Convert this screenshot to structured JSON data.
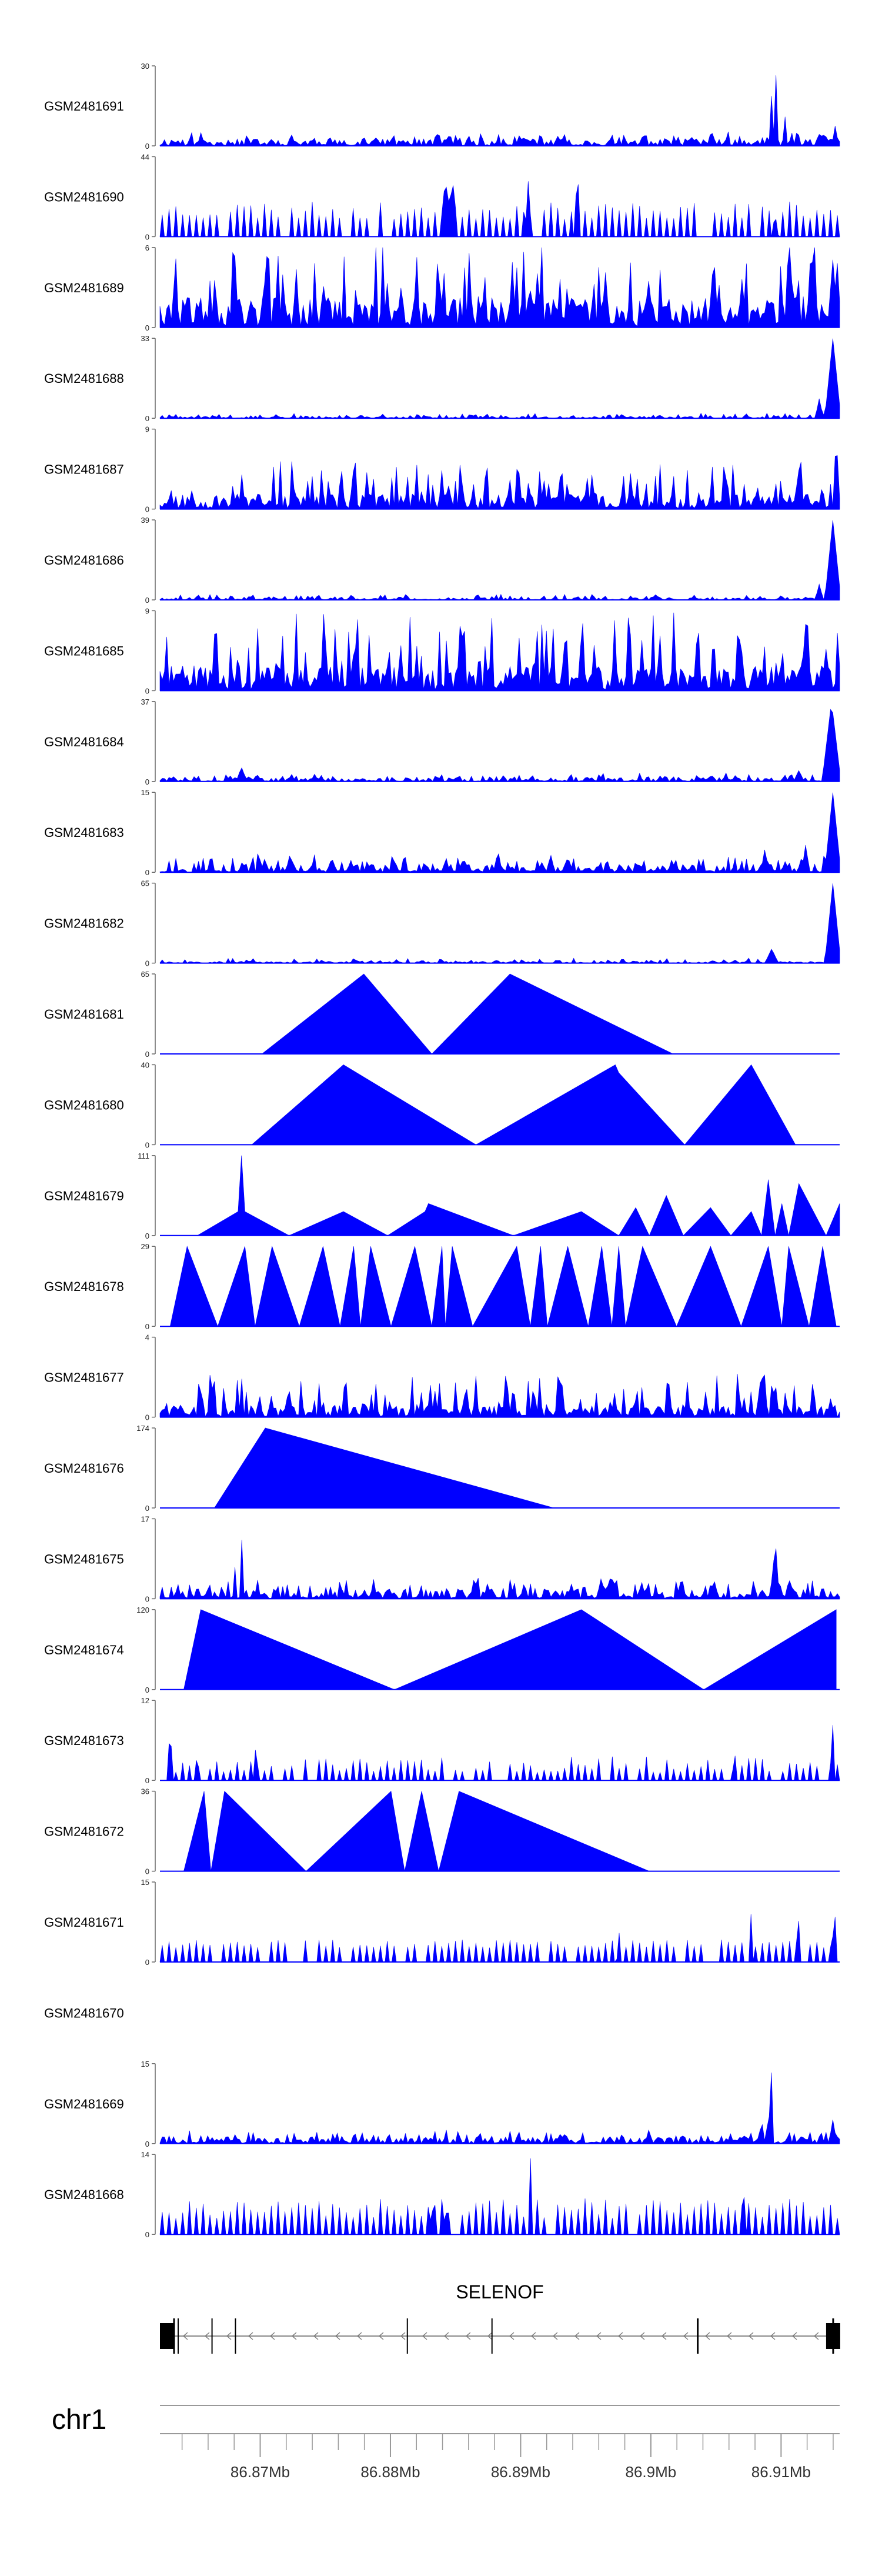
{
  "chart_data": {
    "type": "area",
    "chromosome": "chr1",
    "gene": "SELENOF",
    "x_range_mb": [
      86.8623,
      86.9145
    ],
    "x_ticks_mb": [
      86.87,
      86.88,
      86.89,
      86.9,
      86.91
    ],
    "x_tick_labels": [
      "86.87Mb",
      "86.88Mb",
      "86.89Mb",
      "86.9Mb",
      "86.91Mb"
    ],
    "track_fill_color": "#0000ff",
    "exons_mb": [
      86.8623,
      86.8637,
      86.8663,
      86.8681,
      86.8813,
      86.8878,
      86.9036,
      86.914
    ],
    "tracks": [
      {
        "name": "GSM2481691",
        "ymax": 30,
        "ymax_label": "30",
        "ymin_label": "0",
        "style": "spiky",
        "base": 0.07,
        "var": 0.1,
        "seed": 11,
        "peaks": [
          {
            "x": 0.9,
            "w": 0.004,
            "h": 0.68
          },
          {
            "x": 0.906,
            "w": 0.003,
            "h": 1.0
          },
          {
            "x": 0.92,
            "w": 0.003,
            "h": 0.4
          },
          {
            "x": 0.975,
            "w": 0.004,
            "h": 0.22
          },
          {
            "x": 0.994,
            "w": 0.004,
            "h": 0.3
          }
        ]
      },
      {
        "name": "GSM2481690",
        "ymax": 44,
        "ymax_label": "44",
        "ymin_label": "0",
        "style": "triangles",
        "base": 0.22,
        "var": 0.22,
        "seed": 23,
        "peaks": [
          {
            "x": 0.42,
            "w": 0.008,
            "h": 0.75
          },
          {
            "x": 0.43,
            "w": 0.004,
            "h": 1.0
          },
          {
            "x": 0.542,
            "w": 0.005,
            "h": 0.72
          },
          {
            "x": 0.614,
            "w": 0.004,
            "h": 1.0
          },
          {
            "x": 0.905,
            "w": 0.005,
            "h": 0.3
          }
        ]
      },
      {
        "name": "GSM2481689",
        "ymax": 6,
        "ymax_label": "6",
        "ymin_label": "0",
        "style": "dense",
        "base": 0.3,
        "var": 0.55,
        "seed": 37,
        "peaks": [
          {
            "x": 0.855,
            "w": 0.003,
            "h": 1.0
          },
          {
            "x": 0.99,
            "w": 0.008,
            "h": 0.85
          }
        ]
      },
      {
        "name": "GSM2481688",
        "ymax": 33,
        "ymax_label": "33",
        "ymin_label": "0",
        "style": "spiky",
        "base": 0.02,
        "var": 0.04,
        "seed": 41,
        "peaks": [
          {
            "x": 0.99,
            "w": 0.012,
            "h": 1.0
          },
          {
            "x": 0.97,
            "w": 0.006,
            "h": 0.25
          }
        ]
      },
      {
        "name": "GSM2481687",
        "ymax": 9,
        "ymax_label": "9",
        "ymin_label": "0",
        "style": "dense",
        "base": 0.15,
        "var": 0.35,
        "seed": 53,
        "peaks": [
          {
            "x": 0.995,
            "w": 0.005,
            "h": 1.0
          },
          {
            "x": 0.94,
            "w": 0.005,
            "h": 0.5
          }
        ]
      },
      {
        "name": "GSM2481686",
        "ymax": 39,
        "ymax_label": "39",
        "ymin_label": "0",
        "style": "spiky",
        "base": 0.02,
        "var": 0.05,
        "seed": 61,
        "peaks": [
          {
            "x": 0.99,
            "w": 0.012,
            "h": 1.0
          },
          {
            "x": 0.97,
            "w": 0.006,
            "h": 0.2
          }
        ]
      },
      {
        "name": "GSM2481685",
        "ymax": 9,
        "ymax_label": "9",
        "ymin_label": "0",
        "style": "dense",
        "base": 0.25,
        "var": 0.5,
        "seed": 71,
        "peaks": [
          {
            "x": 0.64,
            "w": 0.003,
            "h": 0.95
          },
          {
            "x": 0.69,
            "w": 0.003,
            "h": 0.98
          }
        ]
      },
      {
        "name": "GSM2481684",
        "ymax": 37,
        "ymax_label": "37",
        "ymin_label": "0",
        "style": "spiky",
        "base": 0.04,
        "var": 0.06,
        "seed": 83,
        "peaks": [
          {
            "x": 0.12,
            "w": 0.008,
            "h": 0.18
          },
          {
            "x": 0.988,
            "w": 0.014,
            "h": 1.0
          },
          {
            "x": 0.94,
            "w": 0.008,
            "h": 0.14
          }
        ]
      },
      {
        "name": "GSM2481683",
        "ymax": 15,
        "ymax_label": "15",
        "ymin_label": "0",
        "style": "spiky",
        "base": 0.08,
        "var": 0.14,
        "seed": 97,
        "peaks": [
          {
            "x": 0.99,
            "w": 0.012,
            "h": 1.0
          },
          {
            "x": 0.89,
            "w": 0.006,
            "h": 0.3
          },
          {
            "x": 0.95,
            "w": 0.006,
            "h": 0.35
          }
        ]
      },
      {
        "name": "GSM2481682",
        "ymax": 65,
        "ymax_label": "65",
        "ymin_label": "0",
        "style": "spiky",
        "base": 0.02,
        "var": 0.04,
        "seed": 101,
        "peaks": [
          {
            "x": 0.99,
            "w": 0.012,
            "h": 1.0
          },
          {
            "x": 0.9,
            "w": 0.01,
            "h": 0.18
          }
        ]
      },
      {
        "name": "GSM2481681",
        "ymax": 65,
        "ymax_label": "65",
        "ymin_label": "0",
        "style": "polygon",
        "points": [
          [
            0.15,
            0
          ],
          [
            0.3,
            1.0
          ],
          [
            0.4,
            0
          ],
          [
            0.515,
            1.0
          ],
          [
            0.755,
            0
          ]
        ]
      },
      {
        "name": "GSM2481680",
        "ymax": 40,
        "ymax_label": "40",
        "ymin_label": "0",
        "style": "polygon",
        "points": [
          [
            0.135,
            0
          ],
          [
            0.27,
            1.0
          ],
          [
            0.465,
            0
          ],
          [
            0.67,
            1.0
          ],
          [
            0.675,
            0.9
          ],
          [
            0.772,
            0
          ],
          [
            0.87,
            1.0
          ],
          [
            0.935,
            0
          ]
        ]
      },
      {
        "name": "GSM2481679",
        "ymax": 111,
        "ymax_label": "111",
        "ymin_label": "0",
        "style": "polygon",
        "points": [
          [
            0.055,
            0
          ],
          [
            0.115,
            0.3
          ],
          [
            0.12,
            1.0
          ],
          [
            0.125,
            0.3
          ],
          [
            0.19,
            0
          ],
          [
            0.27,
            0.3
          ],
          [
            0.335,
            0
          ],
          [
            0.39,
            0.3
          ],
          [
            0.395,
            0.4
          ],
          [
            0.52,
            0
          ],
          [
            0.62,
            0.3
          ],
          [
            0.675,
            0
          ],
          [
            0.7,
            0.35
          ],
          [
            0.72,
            0
          ],
          [
            0.745,
            0.5
          ],
          [
            0.77,
            0
          ],
          [
            0.81,
            0.35
          ],
          [
            0.84,
            0
          ],
          [
            0.87,
            0.3
          ],
          [
            0.885,
            0
          ],
          [
            0.895,
            0.7
          ],
          [
            0.905,
            0
          ],
          [
            0.915,
            0.4
          ],
          [
            0.925,
            0
          ],
          [
            0.94,
            0.65
          ],
          [
            0.98,
            0
          ],
          [
            1.0,
            0.4
          ],
          [
            1.0,
            0
          ]
        ]
      },
      {
        "name": "GSM2481678",
        "ymax": 29,
        "ymax_label": "29",
        "ymin_label": "0",
        "style": "polygon",
        "points": [
          [
            0.015,
            0
          ],
          [
            0.04,
            1.0
          ],
          [
            0.085,
            0
          ],
          [
            0.125,
            1.0
          ],
          [
            0.14,
            0
          ],
          [
            0.165,
            1.0
          ],
          [
            0.205,
            0
          ],
          [
            0.24,
            1.0
          ],
          [
            0.265,
            0
          ],
          [
            0.285,
            1.0
          ],
          [
            0.295,
            0
          ],
          [
            0.31,
            1.0
          ],
          [
            0.34,
            0
          ],
          [
            0.375,
            1.0
          ],
          [
            0.4,
            0
          ],
          [
            0.415,
            1.0
          ],
          [
            0.42,
            0
          ],
          [
            0.43,
            1.0
          ],
          [
            0.46,
            0
          ],
          [
            0.525,
            1.0
          ],
          [
            0.545,
            0
          ],
          [
            0.56,
            1.0
          ],
          [
            0.57,
            0
          ],
          [
            0.6,
            1.0
          ],
          [
            0.63,
            0
          ],
          [
            0.65,
            1.0
          ],
          [
            0.665,
            0
          ],
          [
            0.675,
            1.0
          ],
          [
            0.685,
            0
          ],
          [
            0.71,
            1.0
          ],
          [
            0.76,
            0
          ],
          [
            0.81,
            1.0
          ],
          [
            0.855,
            0
          ],
          [
            0.895,
            1.0
          ],
          [
            0.915,
            0
          ],
          [
            0.925,
            1.0
          ],
          [
            0.955,
            0
          ],
          [
            0.975,
            1.0
          ],
          [
            0.995,
            0
          ]
        ]
      },
      {
        "name": "GSM2481677",
        "ymax": 4,
        "ymax_label": "4",
        "ymin_label": "0",
        "style": "dense",
        "base": 0.12,
        "var": 0.3,
        "seed": 131,
        "peaks": [
          {
            "x": 0.075,
            "w": 0.003,
            "h": 1.0
          },
          {
            "x": 0.45,
            "w": 0.003,
            "h": 0.7
          },
          {
            "x": 0.55,
            "w": 0.003,
            "h": 0.65
          },
          {
            "x": 0.82,
            "w": 0.003,
            "h": 0.65
          },
          {
            "x": 0.89,
            "w": 0.003,
            "h": 0.6
          }
        ]
      },
      {
        "name": "GSM2481676",
        "ymax": 174,
        "ymax_label": "174",
        "ymin_label": "0",
        "style": "polygon",
        "points": [
          [
            0.08,
            0
          ],
          [
            0.155,
            1.0
          ],
          [
            0.58,
            0
          ]
        ]
      },
      {
        "name": "GSM2481675",
        "ymax": 17,
        "ymax_label": "17",
        "ymin_label": "0",
        "style": "spiky",
        "base": 0.1,
        "var": 0.15,
        "seed": 149,
        "peaks": [
          {
            "x": 0.12,
            "w": 0.003,
            "h": 0.85
          },
          {
            "x": 0.11,
            "w": 0.003,
            "h": 0.45
          },
          {
            "x": 0.905,
            "w": 0.004,
            "h": 0.95
          },
          {
            "x": 0.65,
            "w": 0.004,
            "h": 0.35
          }
        ]
      },
      {
        "name": "GSM2481674",
        "ymax": 120,
        "ymax_label": "120",
        "ymin_label": "0",
        "style": "polygon",
        "points": [
          [
            0.035,
            0
          ],
          [
            0.06,
            1.0
          ],
          [
            0.345,
            0
          ],
          [
            0.62,
            1.0
          ],
          [
            0.8,
            0
          ],
          [
            0.995,
            1.0
          ],
          [
            0.995,
            0
          ]
        ]
      },
      {
        "name": "GSM2481673",
        "ymax": 12,
        "ymax_label": "12",
        "ymin_label": "0",
        "style": "triangles",
        "base": 0.1,
        "var": 0.2,
        "seed": 163,
        "peaks": [
          {
            "x": 0.015,
            "w": 0.003,
            "h": 1.0
          },
          {
            "x": 0.055,
            "w": 0.003,
            "h": 0.45
          },
          {
            "x": 0.14,
            "w": 0.003,
            "h": 0.45
          },
          {
            "x": 0.845,
            "w": 0.003,
            "h": 0.5
          },
          {
            "x": 0.99,
            "w": 0.003,
            "h": 0.7
          }
        ]
      },
      {
        "name": "GSM2481672",
        "ymax": 36,
        "ymax_label": "36",
        "ymin_label": "0",
        "style": "polygon",
        "points": [
          [
            0.035,
            0
          ],
          [
            0.065,
            1.0
          ],
          [
            0.075,
            0
          ],
          [
            0.095,
            1.0
          ],
          [
            0.215,
            0
          ],
          [
            0.34,
            1.0
          ],
          [
            0.36,
            0
          ],
          [
            0.385,
            1.0
          ],
          [
            0.41,
            0
          ],
          [
            0.44,
            1.0
          ],
          [
            0.72,
            0
          ]
        ]
      },
      {
        "name": "GSM2481671",
        "ymax": 15,
        "ymax_label": "15",
        "ymin_label": "0",
        "style": "triangles",
        "base": 0.18,
        "var": 0.1,
        "seed": 181,
        "peaks": [
          {
            "x": 0.87,
            "w": 0.003,
            "h": 0.7
          },
          {
            "x": 0.675,
            "w": 0.003,
            "h": 0.45
          },
          {
            "x": 0.94,
            "w": 0.003,
            "h": 0.55
          },
          {
            "x": 0.992,
            "w": 0.003,
            "h": 1.0
          }
        ]
      },
      {
        "name": "GSM2481670",
        "style": "empty"
      },
      {
        "name": "GSM2481669",
        "ymax": 15,
        "ymax_label": "15",
        "ymin_label": "0",
        "style": "spiky",
        "base": 0.07,
        "var": 0.1,
        "seed": 197,
        "peaks": [
          {
            "x": 0.9,
            "w": 0.003,
            "h": 1.0
          },
          {
            "x": 0.895,
            "w": 0.003,
            "h": 0.6
          },
          {
            "x": 0.885,
            "w": 0.004,
            "h": 0.35
          },
          {
            "x": 0.99,
            "w": 0.006,
            "h": 0.3
          }
        ]
      },
      {
        "name": "GSM2481668",
        "ymax": 14,
        "ymax_label": "14",
        "ymin_label": "0",
        "style": "triangles",
        "base": 0.2,
        "var": 0.25,
        "seed": 211,
        "peaks": [
          {
            "x": 0.545,
            "w": 0.003,
            "h": 1.0
          },
          {
            "x": 0.4,
            "w": 0.003,
            "h": 0.55
          },
          {
            "x": 0.42,
            "w": 0.003,
            "h": 0.5
          },
          {
            "x": 0.86,
            "w": 0.003,
            "h": 0.55
          }
        ]
      }
    ]
  }
}
